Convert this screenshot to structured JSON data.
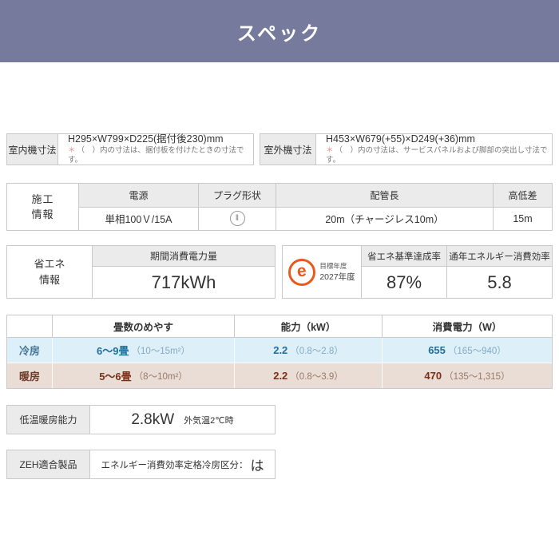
{
  "header": {
    "title": "スペック",
    "bg": "#767b9d"
  },
  "dimensions": {
    "indoor": {
      "label": "室内機寸法",
      "value": "H295×W799×D225(据付後230)mm",
      "note_mark": "＊",
      "note": "（　）内の寸法は、据付板を付けたときの寸法です。"
    },
    "outdoor": {
      "label": "室外機寸法",
      "value": "H453×W679(+55)×D249(+36)mm",
      "note_mark": "＊",
      "note": "（　）内の寸法は、サービスパネルおよび脚部の突出し寸法です。"
    }
  },
  "construction": {
    "label_line1": "施工",
    "label_line2": "情報",
    "power": {
      "header": "電源",
      "value": "単相100Ｖ/15A"
    },
    "plug": {
      "header": "プラグ形状",
      "symbol": "‖"
    },
    "pipe": {
      "header": "配管長",
      "value": "20m（チャージレス10m）"
    },
    "height_diff": {
      "header": "高低差",
      "value": "15m"
    }
  },
  "energy": {
    "label_line1": "省エネ",
    "label_line2": "情報",
    "seasonal": {
      "header": "期間消費電力量",
      "value": "717kWh"
    },
    "target": {
      "logo_letter": "e",
      "line1": "目標年度",
      "line2": "2027年度",
      "logo_color": "#e8591b"
    },
    "achievement": {
      "header": "省エネ基準達成率",
      "value": "87%"
    },
    "apf": {
      "header": "通年エネルギー消費効率",
      "value": "5.8"
    }
  },
  "capacity_table": {
    "headers": {
      "tatami": "畳数のめやす",
      "capacity": "能力（kW）",
      "power": "消費電力（W）"
    },
    "rows": [
      {
        "label": "冷房",
        "tatami": "6〜9畳",
        "tatami_sub": "（10〜15m²）",
        "capacity": "2.2",
        "capacity_sub": "（0.8〜2.8）",
        "power": "655",
        "power_sub": "（165〜940）",
        "bg": "#ddeff8"
      },
      {
        "label": "暖房",
        "tatami": "5〜6畳",
        "tatami_sub": "（8〜10m²）",
        "capacity": "2.2",
        "capacity_sub": "（0.8〜3.9）",
        "power": "470",
        "power_sub": "（135〜1,315）",
        "bg": "#e9ddd5"
      }
    ]
  },
  "low_temp": {
    "label": "低温暖房能力",
    "value": "2.8kW",
    "condition": "外気温2℃時"
  },
  "zeh": {
    "label": "ZEH適合製品",
    "text": "エネルギー消費効率定格冷房区分：",
    "value": "は"
  }
}
